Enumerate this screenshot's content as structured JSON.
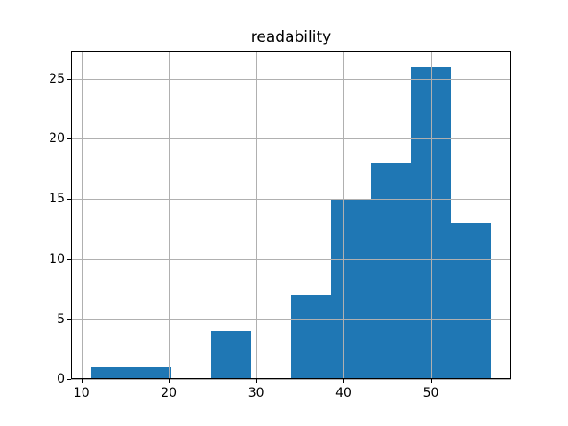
{
  "figure": {
    "background": "#ffffff"
  },
  "chart_data": {
    "type": "bar",
    "subtype": "histogram",
    "title": "readability",
    "xlabel": "",
    "ylabel": "",
    "bin_edges": [
      11.1,
      15.68,
      20.26,
      24.84,
      29.42,
      34.0,
      38.58,
      43.16,
      47.74,
      52.32,
      56.9
    ],
    "counts": [
      1,
      1,
      0,
      4,
      0,
      7,
      15,
      18,
      26,
      13
    ],
    "xticks": [
      "10",
      "20",
      "30",
      "40",
      "50"
    ],
    "xtick_values": [
      10,
      20,
      30,
      40,
      50
    ],
    "yticks": [
      "0",
      "5",
      "10",
      "15",
      "20",
      "25"
    ],
    "ytick_values": [
      0,
      5,
      10,
      15,
      20,
      25
    ],
    "xlim": [
      8.81,
      59.19
    ],
    "ylim": [
      0,
      27.3
    ],
    "grid": true,
    "legend_position": "none",
    "bar_color": "#1f77b4",
    "grid_color": "#b0b0b0",
    "spine_color": "#000000",
    "text_color": "#000000"
  }
}
